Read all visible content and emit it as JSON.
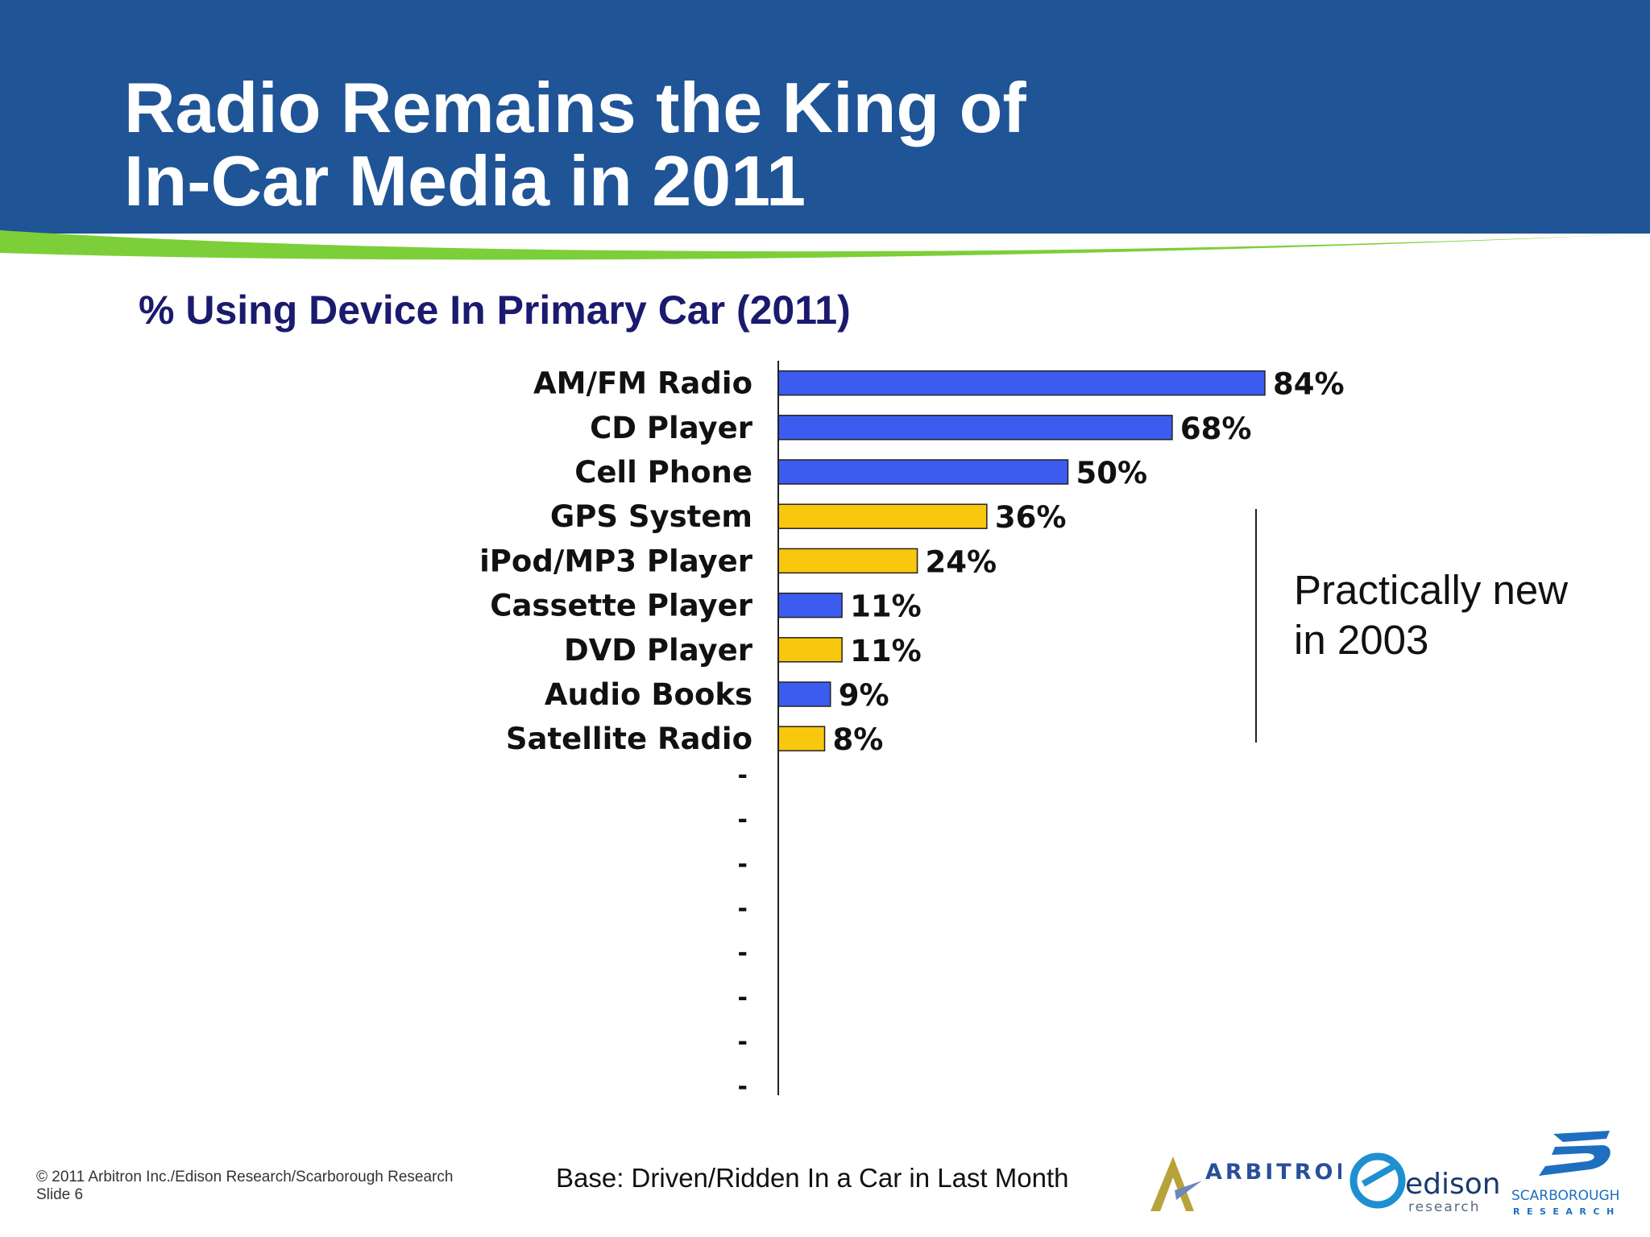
{
  "slide": {
    "title_line1": "Radio Remains the King of",
    "title_line2": "In-Car Media in 2011",
    "colors": {
      "header_blue": "#1f5596",
      "accent_green": "#7dcf3a",
      "bar_blue": "#3c5cf0",
      "bar_yellow": "#f9c80e",
      "subtitle_navy": "#1a1a6e"
    }
  },
  "chart_data": {
    "type": "bar",
    "orientation": "horizontal",
    "title": "% Using Device In Primary Car (2011)",
    "categories": [
      "AM/FM Radio",
      "CD Player",
      "Cell Phone",
      "GPS System",
      "iPod/MP3 Player",
      "Cassette Player",
      "DVD Player",
      "Audio Books",
      "Satellite Radio"
    ],
    "values": [
      84,
      68,
      50,
      36,
      24,
      11,
      11,
      9,
      8
    ],
    "value_labels": [
      "84%",
      "68%",
      "50%",
      "36%",
      "24%",
      "11%",
      "11%",
      "9%",
      "8%"
    ],
    "bar_colors": [
      "blue",
      "blue",
      "blue",
      "yellow",
      "yellow",
      "blue",
      "yellow",
      "blue",
      "yellow"
    ],
    "empty_category_labels": [
      "-",
      "-",
      "-",
      "-",
      "-",
      "-",
      "-",
      "-"
    ],
    "xlim": [
      0,
      100
    ],
    "grid": false,
    "legend": "none"
  },
  "callout": {
    "line1": "Practically new",
    "line2": "in 2003"
  },
  "footer": {
    "copyright_line": "© 2011 Arbitron Inc./Edison Research/Scarborough Research",
    "slide_number": "Slide 6",
    "base_note": "Base: Driven/Ridden In a Car in Last Month",
    "logos": {
      "arbitron": "ARBITRON",
      "edison": "edison",
      "edison_sub": "research",
      "scarborough": "SCARBOROUGH",
      "scarborough_sub": "RESEARCH"
    }
  }
}
